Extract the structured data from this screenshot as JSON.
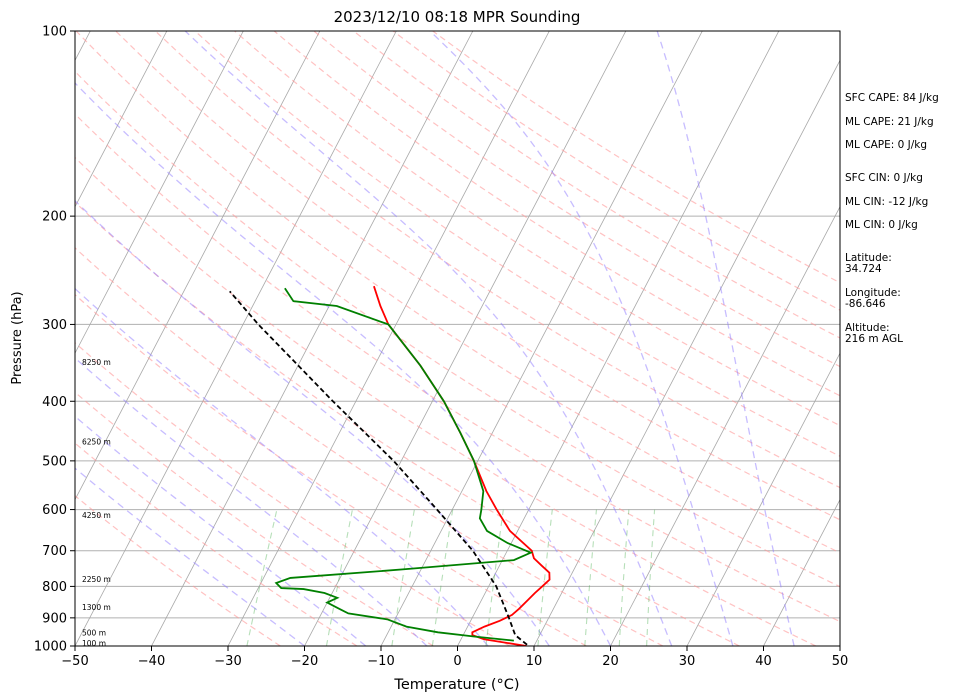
{
  "chart_data": {
    "type": "line",
    "title": "2023/12/10 08:18 MPR Sounding",
    "xlabel": "Temperature (°C)",
    "ylabel": "Pressure (hPa)",
    "xlim": [
      -50,
      50
    ],
    "ylim": [
      1000,
      100
    ],
    "y_scale": "log",
    "skew": "skew-T",
    "grid": true,
    "x_ticks": [
      "−50",
      "−40",
      "−30",
      "−20",
      "−10",
      "0",
      "10",
      "20",
      "30",
      "40",
      "50"
    ],
    "y_ticks": [
      "1000",
      "900",
      "800",
      "700",
      "600",
      "500",
      "400",
      "300",
      "200",
      "100"
    ],
    "y_tick_values": [
      1000,
      900,
      800,
      700,
      600,
      500,
      400,
      300,
      200,
      100
    ],
    "height_labels": [
      {
        "p": 988,
        "text": "100 m"
      },
      {
        "p": 950,
        "text": "500 m"
      },
      {
        "p": 864,
        "text": "1300 m"
      },
      {
        "p": 778,
        "text": "2250 m"
      },
      {
        "p": 612,
        "text": "4250 m"
      },
      {
        "p": 465,
        "text": "6250 m"
      },
      {
        "p": 345,
        "text": "8250 m"
      }
    ],
    "series": [
      {
        "color": "#ff0000",
        "points": [
          [
            1000,
            9.0
          ],
          [
            975,
            3.0
          ],
          [
            960,
            1.2
          ],
          [
            950,
            1.0
          ],
          [
            930,
            2.2
          ],
          [
            910,
            3.8
          ],
          [
            890,
            5.0
          ],
          [
            870,
            5.5
          ],
          [
            845,
            6.0
          ],
          [
            820,
            6.5
          ],
          [
            800,
            7.0
          ],
          [
            780,
            7.5
          ],
          [
            760,
            7.0
          ],
          [
            740,
            5.5
          ],
          [
            720,
            4.0
          ],
          [
            700,
            3.2
          ],
          [
            650,
            -1.0
          ],
          [
            600,
            -4.2
          ],
          [
            560,
            -6.8
          ],
          [
            500,
            -10.5
          ],
          [
            450,
            -14.2
          ],
          [
            400,
            -18.5
          ],
          [
            350,
            -24.0
          ],
          [
            300,
            -31.0
          ],
          [
            280,
            -33.3
          ],
          [
            260,
            -35.5
          ]
        ]
      },
      {
        "color": "#008000",
        "points": [
          [
            980,
            7.0
          ],
          [
            965,
            1.5
          ],
          [
            950,
            -3.5
          ],
          [
            930,
            -8.0
          ],
          [
            905,
            -11.0
          ],
          [
            885,
            -16.5
          ],
          [
            870,
            -18.0
          ],
          [
            850,
            -20.0
          ],
          [
            835,
            -19.0
          ],
          [
            820,
            -21.0
          ],
          [
            808,
            -24.0
          ],
          [
            805,
            -27.0
          ],
          [
            790,
            -28.0
          ],
          [
            775,
            -26.5
          ],
          [
            750,
            -12.0
          ],
          [
            725,
            1.5
          ],
          [
            705,
            3.2
          ],
          [
            680,
            -0.5
          ],
          [
            650,
            -4.0
          ],
          [
            620,
            -5.8
          ],
          [
            600,
            -6.2
          ],
          [
            560,
            -7.2
          ],
          [
            500,
            -10.5
          ],
          [
            450,
            -14.2
          ],
          [
            400,
            -18.5
          ],
          [
            350,
            -24.0
          ],
          [
            300,
            -31.0
          ],
          [
            280,
            -39.0
          ],
          [
            275,
            -45.0
          ],
          [
            262,
            -47.0
          ]
        ]
      },
      {
        "color": "#000000",
        "dashed": true,
        "points": [
          [
            995,
            9.0
          ],
          [
            960,
            6.8
          ],
          [
            900,
            4.8
          ],
          [
            800,
            1.0
          ],
          [
            700,
            -4.5
          ],
          [
            600,
            -12.0
          ],
          [
            500,
            -21.0
          ],
          [
            400,
            -33.0
          ],
          [
            300,
            -48.0
          ],
          [
            265,
            -54.0
          ]
        ]
      }
    ]
  },
  "side": {
    "sfc_cape": "SFC CAPE: 84 J/kg",
    "ml_cape_1": "ML CAPE: 21 J/kg",
    "ml_cape_2": "ML CAPE: 0 J/kg",
    "sfc_cin": "SFC CIN: 0 J/kg",
    "ml_cin_1": "ML CIN: -12 J/kg",
    "ml_cin_2": "ML CIN: 0 J/kg",
    "latitude": "Latitude:\n34.724",
    "longitude": "Longitude:\n-86.646",
    "altitude": "Altitude:\n216 m AGL"
  }
}
